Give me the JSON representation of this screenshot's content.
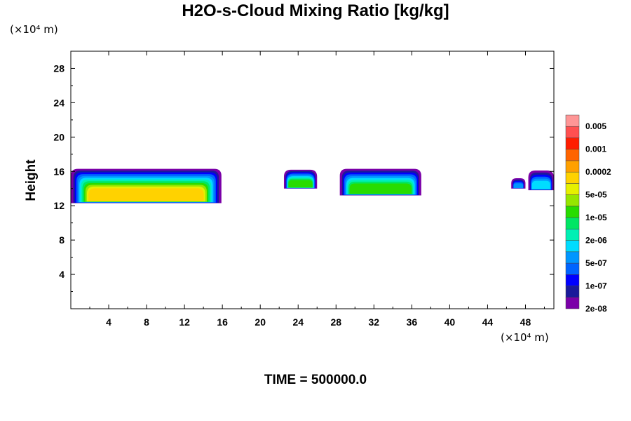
{
  "chart_data": {
    "type": "contour",
    "title": "H2O-s-Cloud Mixing Ratio [kg/kg]",
    "xlabel": "",
    "ylabel": "Height",
    "x_unit": "(×10⁴ m)",
    "y_unit": "(×10⁴ m)",
    "xlim": [
      0,
      51
    ],
    "ylim": [
      0,
      30
    ],
    "x_ticks": [
      4,
      8,
      12,
      16,
      20,
      24,
      28,
      32,
      36,
      40,
      44,
      48
    ],
    "y_ticks": [
      4,
      8,
      12,
      16,
      20,
      24,
      28
    ],
    "time_label": "TIME = 500000.0",
    "colorbar": {
      "labels": [
        "0.005",
        "0.001",
        "0.0002",
        "5e-05",
        "1e-05",
        "2e-06",
        "5e-07",
        "1e-07",
        "2e-08"
      ],
      "colors": [
        "#7b00a8",
        "#1a1a9a",
        "#0000ff",
        "#0064ff",
        "#0096ff",
        "#00dcff",
        "#00f0b4",
        "#00e664",
        "#28dc00",
        "#96e600",
        "#e6f000",
        "#ffd200",
        "#ffa000",
        "#ff6400",
        "#ff1e00",
        "#ff5050",
        "#ff9696"
      ]
    },
    "clouds": [
      {
        "x_range": [
          0,
          15.9
        ],
        "y_range": [
          12.3,
          16.3
        ],
        "core_level": 11
      },
      {
        "x_range": [
          22.5,
          26
        ],
        "y_range": [
          14,
          16.2
        ],
        "core_level": 8
      },
      {
        "x_range": [
          28.4,
          37
        ],
        "y_range": [
          13.2,
          16.3
        ],
        "core_level": 8
      },
      {
        "x_range": [
          46.5,
          48
        ],
        "y_range": [
          14,
          15.2
        ],
        "core_level": 4
      },
      {
        "x_range": [
          48.3,
          51
        ],
        "y_range": [
          13.8,
          16.1
        ],
        "core_level": 5
      }
    ]
  }
}
